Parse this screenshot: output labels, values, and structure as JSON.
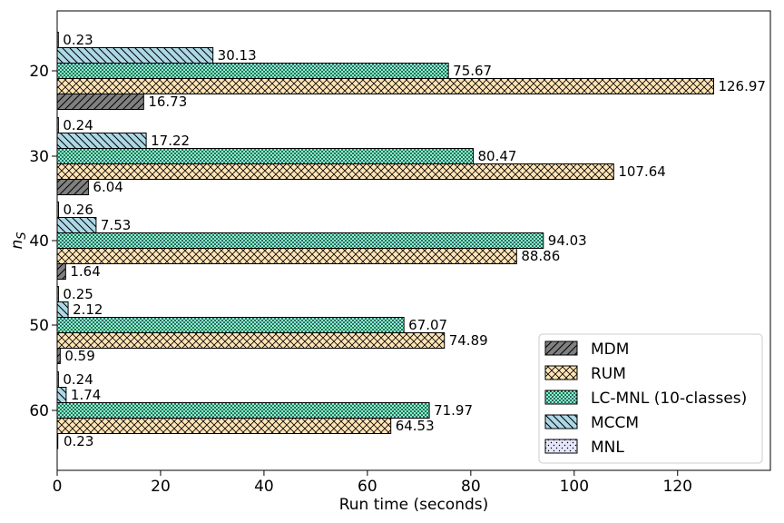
{
  "chart_data": {
    "type": "bar",
    "orientation": "horizontal",
    "title": "",
    "xlabel": "Run time (seconds)",
    "ylabel": "n_S",
    "categories": [
      "20",
      "30",
      "40",
      "50",
      "60"
    ],
    "xlim": [
      0,
      137
    ],
    "xticks": [
      0,
      20,
      40,
      60,
      80,
      100,
      120
    ],
    "grid": false,
    "legend_position": "lower-right",
    "series": [
      {
        "name": "MDM",
        "values": [
          16.73,
          6.04,
          1.64,
          0.59,
          null
        ],
        "labels": [
          "16.73",
          "6.04",
          "1.64",
          "0.59",
          ""
        ],
        "color": "#808080",
        "hatch": "diagonal-up"
      },
      {
        "name": "RUM",
        "values": [
          126.97,
          107.64,
          88.86,
          74.89,
          64.53
        ],
        "labels": [
          "126.97",
          "107.64",
          "88.86",
          "74.89",
          "64.53"
        ],
        "color": "#ffe4b5",
        "hatch": "cross"
      },
      {
        "name": "LC-MNL (10-classes)",
        "values": [
          75.67,
          80.47,
          94.03,
          67.07,
          71.97
        ],
        "labels": [
          "75.67",
          "80.47",
          "94.03",
          "67.07",
          "71.97"
        ],
        "color": "#7fffd4",
        "hatch": "dots-dense"
      },
      {
        "name": "MCCM",
        "values": [
          30.13,
          17.22,
          7.53,
          2.12,
          1.74
        ],
        "labels": [
          "30.13",
          "17.22",
          "7.53",
          "2.12",
          "1.74"
        ],
        "color": "#add8e6",
        "hatch": "diagonal-down"
      },
      {
        "name": "MNL",
        "values": [
          0.23,
          0.24,
          0.26,
          0.25,
          0.24
        ],
        "labels": [
          "0.23",
          "0.24",
          "0.26",
          "0.25",
          "0.24"
        ],
        "color": "#e6e6fa",
        "hatch": "dots"
      }
    ],
    "extra_labels": [
      {
        "category": "60",
        "text": "0.23"
      }
    ]
  }
}
